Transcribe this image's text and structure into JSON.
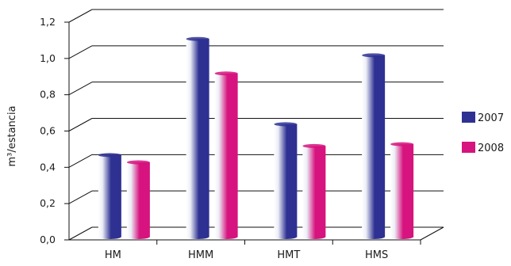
{
  "chart_data": {
    "type": "bar",
    "title": "",
    "xlabel": "",
    "ylabel": "m³/estancia",
    "categories": [
      "HM",
      "HMM",
      "HMT",
      "HMS"
    ],
    "series": [
      {
        "name": "2007",
        "values": [
          0.45,
          1.09,
          0.62,
          1.0
        ],
        "color": "#2e3192"
      },
      {
        "name": "2008",
        "values": [
          0.41,
          0.9,
          0.5,
          0.51
        ],
        "color": "#d6137e"
      }
    ],
    "ylim": [
      0,
      1.2
    ],
    "yticks": [
      "0,0",
      "0,2",
      "0,4",
      "0,6",
      "0,8",
      "1,0",
      "1,2"
    ],
    "grid": true,
    "legend_position": "right",
    "style": "3d-cylinder"
  }
}
